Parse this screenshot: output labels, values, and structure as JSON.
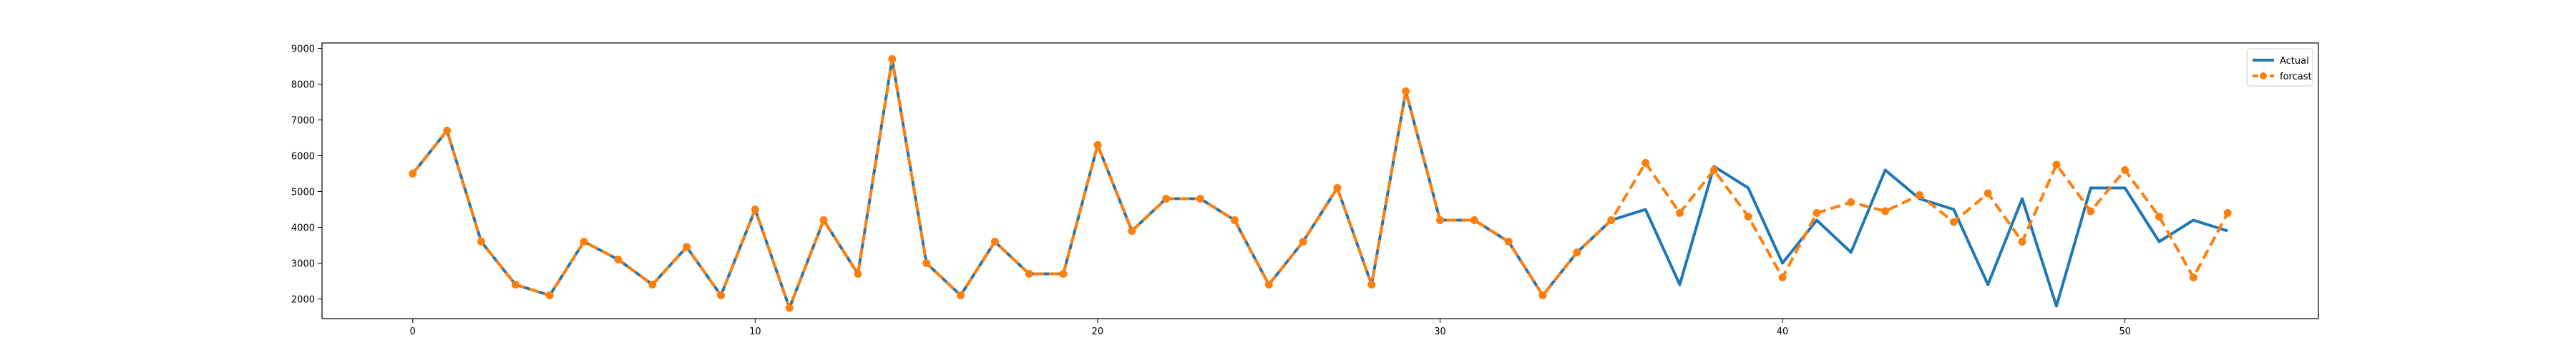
{
  "chart_data": {
    "type": "line",
    "title": "",
    "xlabel": "",
    "ylabel": "",
    "xlim": [
      -2.65,
      55.65
    ],
    "ylim": [
      1450,
      9150
    ],
    "x_ticks": [
      0,
      10,
      20,
      30,
      40,
      50
    ],
    "y_ticks": [
      2000,
      3000,
      4000,
      5000,
      6000,
      7000,
      8000,
      9000
    ],
    "grid": false,
    "legend": {
      "placement": "top-right"
    },
    "series": [
      {
        "name": "Actual",
        "color": "#1f77b4",
        "style": "solid",
        "marker": "none",
        "x": [
          0,
          1,
          2,
          3,
          4,
          5,
          6,
          7,
          8,
          9,
          10,
          11,
          12,
          13,
          14,
          15,
          16,
          17,
          18,
          19,
          20,
          21,
          22,
          23,
          24,
          25,
          26,
          27,
          28,
          29,
          30,
          31,
          32,
          33,
          34,
          35,
          36,
          37,
          38,
          39,
          40,
          41,
          42,
          43,
          44,
          45,
          46,
          47,
          48,
          49,
          50,
          51,
          52,
          53
        ],
        "values": [
          5500,
          6700,
          3600,
          2400,
          2100,
          3600,
          3100,
          2400,
          3450,
          2100,
          4500,
          1750,
          4200,
          2700,
          8700,
          3000,
          2100,
          3600,
          2700,
          2700,
          6300,
          3900,
          4800,
          4800,
          4200,
          2400,
          3600,
          5100,
          2400,
          7800,
          4200,
          4200,
          3600,
          2100,
          3300,
          4200,
          4500,
          2400,
          5700,
          5100,
          3000,
          4200,
          3300,
          5600,
          4800,
          4500,
          2400,
          4800,
          1800,
          5100,
          5100,
          3600,
          4200,
          3900
        ]
      },
      {
        "name": "forcast",
        "color": "#ff7f0e",
        "style": "dashed",
        "marker": "circle",
        "x": [
          0,
          1,
          2,
          3,
          4,
          5,
          6,
          7,
          8,
          9,
          10,
          11,
          12,
          13,
          14,
          15,
          16,
          17,
          18,
          19,
          20,
          21,
          22,
          23,
          24,
          25,
          26,
          27,
          28,
          29,
          30,
          31,
          32,
          33,
          34,
          35,
          36,
          37,
          38,
          39,
          40,
          41,
          42,
          43,
          44,
          45,
          46,
          47,
          48,
          49,
          50,
          51,
          52,
          53
        ],
        "values": [
          5500,
          6700,
          3600,
          2400,
          2100,
          3600,
          3100,
          2400,
          3450,
          2100,
          4500,
          1750,
          4200,
          2700,
          8700,
          3000,
          2100,
          3600,
          2700,
          2700,
          6300,
          3900,
          4800,
          4800,
          4200,
          2400,
          3600,
          5100,
          2400,
          7800,
          4200,
          4200,
          3600,
          2100,
          3300,
          4200,
          5800,
          4400,
          5600,
          4300,
          2600,
          4400,
          4700,
          4450,
          4900,
          4150,
          4950,
          3600,
          5750,
          4450,
          5600,
          4300,
          2600,
          4400
        ]
      }
    ]
  }
}
